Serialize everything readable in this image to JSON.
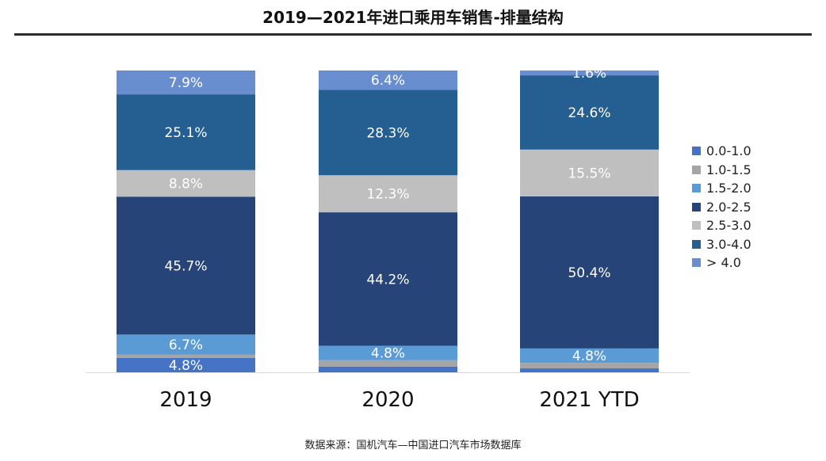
{
  "chart_data": {
    "type": "bar",
    "stacked": true,
    "title": "2019—2021年进口乘用车销售-排量结构",
    "xlabel": "",
    "ylabel": "",
    "ylim": [
      0,
      100
    ],
    "categories": [
      "2019",
      "2020",
      "2021 YTD"
    ],
    "series": [
      {
        "name": "0.0-1.0",
        "color": "#4472C4",
        "values": [
          4.8,
          1.9,
          1.3
        ],
        "labels": [
          "4.8%",
          "",
          ""
        ]
      },
      {
        "name": "1.0-1.5",
        "color": "#A5A5A5",
        "values": [
          1.0,
          2.1,
          1.8
        ],
        "labels": [
          "",
          "",
          ""
        ]
      },
      {
        "name": "1.5-2.0",
        "color": "#5B9BD5",
        "values": [
          6.7,
          4.8,
          4.8
        ],
        "labels": [
          "6.7%",
          "4.8%",
          "4.8%"
        ]
      },
      {
        "name": "2.0-2.5",
        "color": "#264478",
        "values": [
          45.7,
          44.2,
          50.4
        ],
        "labels": [
          "45.7%",
          "44.2%",
          "50.4%"
        ]
      },
      {
        "name": "2.5-3.0",
        "color": "#BFBFBF",
        "values": [
          8.8,
          12.3,
          15.5
        ],
        "labels": [
          "8.8%",
          "12.3%",
          "15.5%"
        ]
      },
      {
        "name": "3.0-4.0",
        "color": "#255E91",
        "values": [
          25.1,
          28.3,
          24.6
        ],
        "labels": [
          "25.1%",
          "28.3%",
          "24.6%"
        ]
      },
      {
        "name": "> 4.0",
        "color": "#698ED0",
        "values": [
          7.9,
          6.4,
          1.6
        ],
        "labels": [
          "7.9%",
          "6.4%",
          "1.6%"
        ]
      }
    ],
    "legend_position": "right",
    "grid": false
  },
  "source_note": "数据来源：国机汽车—中国进口汽车市场数据库"
}
